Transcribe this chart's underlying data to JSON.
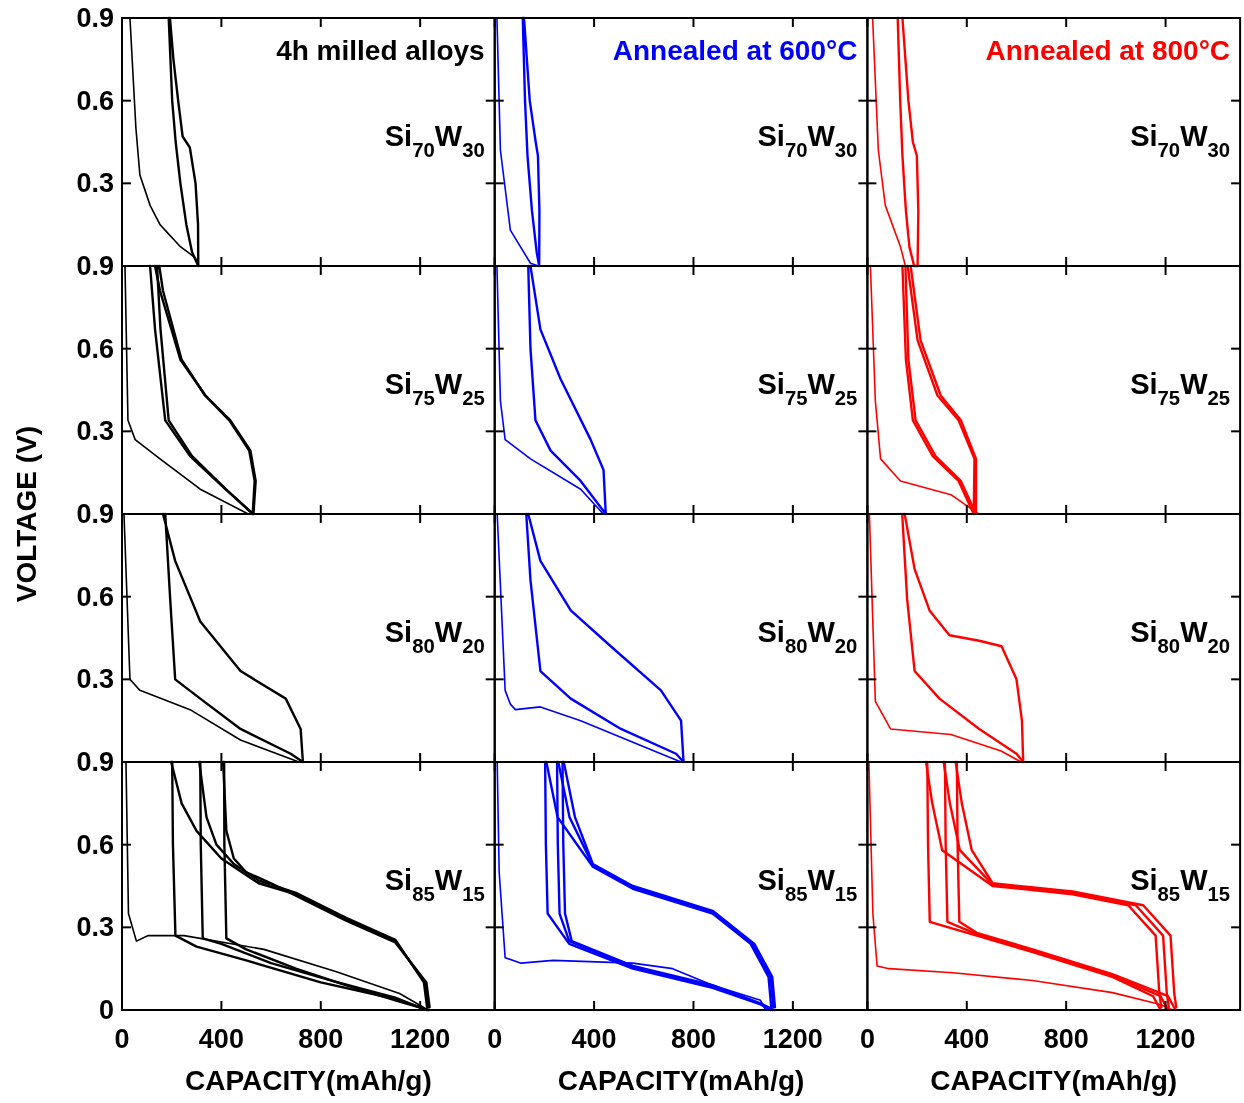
{
  "chart_data": [
    {
      "type": "line",
      "title": "4h milled alloys",
      "annotations": [
        "Si$_{70}$W$_{30}$"
      ],
      "ylabel": "VOLTAGE (V)",
      "xlim": [
        0,
        1500
      ],
      "xticks": [
        0,
        400,
        800,
        1200
      ],
      "ylim": [
        0,
        0.9
      ],
      "yticks": [
        0.3,
        0.6,
        0.9
      ],
      "tick_labels": "y",
      "series": [
        {
          "color": "#000000",
          "x": [
            32,
            56,
            72,
            113,
            153,
            235,
            295,
            307
          ],
          "values": [
            0.9,
            0.5,
            0.33,
            0.22,
            0.15,
            0.07,
            0.03,
            0
          ]
        },
        {
          "color": "#000000",
          "x": [
            188,
            202,
            216,
            235,
            259,
            282,
            307,
            306,
            296,
            273,
            244,
            226,
            207,
            193
          ],
          "values": [
            0.9,
            0.6,
            0.45,
            0.3,
            0.15,
            0.05,
            0,
            0.15,
            0.3,
            0.43,
            0.47,
            0.6,
            0.75,
            0.9
          ]
        }
      ]
    },
    {
      "type": "line",
      "title": "Annealed at 600°C",
      "annotations": [
        "Si$_{70}$W$_{30}$"
      ],
      "xlim": [
        0,
        1500
      ],
      "xticks": [
        0,
        400,
        800,
        1200
      ],
      "ylim": [
        0,
        0.9
      ],
      "yticks": [
        0.3,
        0.6,
        0.9
      ],
      "tick_labels": false,
      "series": [
        {
          "color": "#0000ff",
          "x": [
            9,
            23,
            63,
            144,
            176
          ],
          "values": [
            0.9,
            0.42,
            0.13,
            0.01,
            0
          ]
        },
        {
          "color": "#0000ff",
          "x": [
            113,
            122,
            132,
            150,
            169,
            179,
            180,
            174,
            165,
            141,
            118
          ],
          "values": [
            0.9,
            0.6,
            0.4,
            0.2,
            0.05,
            0,
            0.2,
            0.4,
            0.45,
            0.6,
            0.9
          ]
        }
      ]
    },
    {
      "type": "line",
      "title": "Annealed at 800°C",
      "annotations": [
        "Si$_{70}$W$_{30}$"
      ],
      "xlim": [
        0,
        1500
      ],
      "xticks": [
        0,
        400,
        800,
        1200
      ],
      "ylim": [
        0,
        0.9
      ],
      "yticks": [
        0.3,
        0.6,
        0.9
      ],
      "tick_labels": false,
      "series": [
        {
          "color": "#ff0000",
          "x": [
            21,
            44,
            72,
            133,
            153
          ],
          "values": [
            0.9,
            0.42,
            0.22,
            0.07,
            0
          ]
        },
        {
          "color": "#ff0000",
          "x": [
            122,
            132,
            141,
            155,
            169,
            188,
            202,
            205,
            199,
            183,
            165,
            141
          ],
          "values": [
            0.9,
            0.6,
            0.4,
            0.2,
            0.07,
            0,
            0,
            0.2,
            0.4,
            0.45,
            0.6,
            0.9
          ]
        }
      ]
    },
    {
      "type": "line",
      "annotations": [
        "Si$_{75}$W$_{25}$"
      ],
      "xlim": [
        0,
        1500
      ],
      "xticks": [
        0,
        400,
        800,
        1200
      ],
      "ylim": [
        0,
        0.9
      ],
      "yticks": [
        0.3,
        0.6,
        0.9
      ],
      "tick_labels": "y",
      "series": [
        {
          "color": "#000000",
          "x": [
            12,
            24,
            53,
            153,
            315,
            508
          ],
          "values": [
            0.9,
            0.34,
            0.27,
            0.2,
            0.09,
            0
          ]
        },
        {
          "color": "#000000",
          "x": [
            113,
            133,
            174,
            274,
            416,
            529,
            538,
            517,
            436,
            336,
            235,
            153,
            133
          ],
          "values": [
            0.9,
            0.67,
            0.34,
            0.21,
            0.09,
            0,
            0.12,
            0.23,
            0.34,
            0.43,
            0.56,
            0.81,
            0.9
          ]
        },
        {
          "color": "#000000",
          "x": [
            141,
            155,
            188,
            282,
            418,
            526,
            534,
            512,
            432,
            334,
            240,
            165,
            150
          ],
          "values": [
            0.9,
            0.67,
            0.34,
            0.21,
            0.09,
            0,
            0.12,
            0.23,
            0.34,
            0.43,
            0.56,
            0.81,
            0.9
          ]
        }
      ]
    },
    {
      "type": "line",
      "annotations": [
        "Si$_{75}$W$_{25}$"
      ],
      "xlim": [
        0,
        1500
      ],
      "xticks": [
        0,
        400,
        800,
        1200
      ],
      "ylim": [
        0,
        0.9
      ],
      "yticks": [
        0.3,
        0.6,
        0.9
      ],
      "tick_labels": false,
      "series": [
        {
          "color": "#0000ff",
          "x": [
            9,
            23,
            42,
            144,
            346,
            437
          ],
          "values": [
            0.9,
            0.41,
            0.27,
            0.2,
            0.09,
            0
          ]
        },
        {
          "color": "#0000ff",
          "x": [
            135,
            144,
            164,
            225,
            346,
            447,
            438,
            386,
            265,
            184,
            144
          ],
          "values": [
            0.9,
            0.6,
            0.34,
            0.23,
            0.12,
            0,
            0.16,
            0.27,
            0.49,
            0.67,
            0.9
          ]
        }
      ]
    },
    {
      "type": "line",
      "annotations": [
        "Si$_{75}$W$_{25}$"
      ],
      "xlim": [
        0,
        1500
      ],
      "xticks": [
        0,
        400,
        800,
        1200
      ],
      "ylim": [
        0,
        0.9
      ],
      "yticks": [
        0.3,
        0.6,
        0.9
      ],
      "tick_labels": false,
      "series": [
        {
          "color": "#ff0000",
          "x": [
            12,
            32,
            53,
            133,
            336,
            448
          ],
          "values": [
            0.9,
            0.41,
            0.2,
            0.12,
            0.07,
            0
          ]
        },
        {
          "color": "#ff0000",
          "x": [
            153,
            165,
            194,
            274,
            376,
            437,
            437,
            376,
            295,
            214,
            174
          ],
          "values": [
            0.9,
            0.56,
            0.34,
            0.21,
            0.12,
            0,
            0.2,
            0.34,
            0.43,
            0.63,
            0.9
          ]
        },
        {
          "color": "#ff0000",
          "x": [
            141,
            155,
            183,
            263,
            367,
            428,
            431,
            367,
            282,
            202,
            162
          ],
          "values": [
            0.9,
            0.56,
            0.34,
            0.21,
            0.12,
            0,
            0.2,
            0.34,
            0.43,
            0.63,
            0.9
          ]
        }
      ]
    },
    {
      "type": "line",
      "annotations": [
        "Si$_{80}$W$_{20}$"
      ],
      "xlim": [
        0,
        1500
      ],
      "xticks": [
        0,
        400,
        800,
        1200
      ],
      "ylim": [
        0,
        0.9
      ],
      "yticks": [
        0.3,
        0.6,
        0.9
      ],
      "tick_labels": "y",
      "series": [
        {
          "color": "#000000",
          "x": [
            8,
            32,
            72,
            274,
            477,
            712
          ],
          "values": [
            0.9,
            0.3,
            0.26,
            0.19,
            0.08,
            0
          ]
        },
        {
          "color": "#000000",
          "x": [
            174,
            194,
            214,
            315,
            477,
            679,
            728,
            719,
            659,
            477,
            315,
            214,
            165
          ],
          "values": [
            0.9,
            0.59,
            0.3,
            0.23,
            0.12,
            0.03,
            0,
            0.12,
            0.23,
            0.33,
            0.51,
            0.73,
            0.9
          ]
        }
      ]
    },
    {
      "type": "line",
      "annotations": [
        "Si$_{80}$W$_{20}$"
      ],
      "xlim": [
        0,
        1500
      ],
      "xticks": [
        0,
        400,
        800,
        1200
      ],
      "ylim": [
        0,
        0.9
      ],
      "yticks": [
        0.3,
        0.6,
        0.9
      ],
      "tick_labels": false,
      "series": [
        {
          "color": "#0000ff",
          "x": [
            10,
            42,
            63,
            83,
            184,
            346,
            588,
            750
          ],
          "values": [
            0.9,
            0.26,
            0.21,
            0.19,
            0.2,
            0.15,
            0.06,
            0
          ]
        },
        {
          "color": "#0000ff",
          "x": [
            127,
            144,
            184,
            306,
            508,
            730,
            760,
            750,
            669,
            467,
            306,
            184,
            135
          ],
          "values": [
            0.9,
            0.66,
            0.33,
            0.23,
            0.12,
            0.03,
            0,
            0.15,
            0.26,
            0.42,
            0.55,
            0.73,
            0.9
          ]
        }
      ]
    },
    {
      "type": "line",
      "annotations": [
        "Si$_{80}$W$_{20}$"
      ],
      "xlim": [
        0,
        1500
      ],
      "xticks": [
        0,
        400,
        800,
        1200
      ],
      "ylim": [
        0,
        0.9
      ],
      "yticks": [
        0.3,
        0.6,
        0.9
      ],
      "tick_labels": false,
      "series": [
        {
          "color": "#ff0000",
          "x": [
            8,
            32,
            93,
            336,
            538,
            619
          ],
          "values": [
            0.9,
            0.22,
            0.12,
            0.1,
            0.04,
            0
          ]
        },
        {
          "color": "#ff0000",
          "x": [
            140,
            160,
            190,
            290,
            450,
            600,
            627,
            627,
            622,
            600,
            540,
            450,
            330,
            250,
            190,
            150
          ],
          "values": [
            0.9,
            0.59,
            0.33,
            0.23,
            0.12,
            0.03,
            0,
            0,
            0.15,
            0.3,
            0.42,
            0.44,
            0.46,
            0.55,
            0.7,
            0.9
          ]
        }
      ]
    },
    {
      "type": "line",
      "annotations": [
        "Si$_{85}$W$_{15}$"
      ],
      "xlabel": "CAPACITY(mAh/g)",
      "xlim": [
        0,
        1500
      ],
      "xticks": [
        0,
        400,
        800,
        1200
      ],
      "ylim": [
        0,
        0.9
      ],
      "yticks": [
        0,
        0.3,
        0.6,
        0.9
      ],
      "series": [
        {
          "color": "#000000",
          "x": [
            16,
            26,
            58,
            106,
            250,
            571,
            860,
            1117,
            1213,
            1220
          ],
          "values": [
            0.9,
            0.35,
            0.25,
            0.27,
            0.27,
            0.22,
            0.14,
            0.06,
            0.01,
            0
          ]
        },
        {
          "color": "#000000",
          "x": [
            202,
            205,
            215,
            300,
            500,
            800,
            1100,
            1230
          ],
          "values": [
            0.9,
            0.6,
            0.27,
            0.23,
            0.18,
            0.1,
            0.04,
            0
          ]
        },
        {
          "color": "#000000",
          "x": [
            198,
            240,
            300,
            400,
            550,
            700,
            900,
            1100,
            1220,
            1232
          ],
          "values": [
            0.9,
            0.75,
            0.65,
            0.55,
            0.46,
            0.42,
            0.33,
            0.25,
            0.1,
            0.01
          ]
        },
        {
          "color": "#000000",
          "x": [
            315,
            317,
            325,
            400,
            600,
            850,
            1100,
            1225
          ],
          "values": [
            0.9,
            0.6,
            0.26,
            0.24,
            0.17,
            0.105,
            0.045,
            0
          ]
        },
        {
          "color": "#000000",
          "x": [
            311,
            340,
            380,
            450,
            550,
            700,
            900,
            1100,
            1215,
            1228
          ],
          "values": [
            0.9,
            0.7,
            0.6,
            0.53,
            0.47,
            0.425,
            0.335,
            0.255,
            0.1,
            0.01
          ]
        },
        {
          "color": "#000000",
          "x": [
            411,
            412,
            420,
            500,
            700,
            900,
            1100,
            1235
          ],
          "values": [
            0.9,
            0.6,
            0.26,
            0.22,
            0.15,
            0.09,
            0.035,
            0
          ]
        },
        {
          "color": "#000000",
          "x": [
            407,
            420,
            450,
            500,
            600,
            700,
            900,
            1100,
            1225,
            1238
          ],
          "values": [
            0.9,
            0.65,
            0.55,
            0.5,
            0.46,
            0.415,
            0.325,
            0.245,
            0.1,
            0.01
          ]
        }
      ]
    },
    {
      "type": "line",
      "annotations": [
        "Si$_{85}$W$_{15}$"
      ],
      "xlabel": "CAPACITY(mAh/g)",
      "xlim": [
        0,
        1500
      ],
      "xticks": [
        0,
        400,
        800,
        1200
      ],
      "ylim": [
        0,
        0.9
      ],
      "yticks": [
        0,
        0.3,
        0.6,
        0.9
      ],
      "tick_labels": "x",
      "series": [
        {
          "color": "#0000ff",
          "x": [
            10,
            18,
            42,
            106,
            235,
            556,
            716,
            877,
            1070,
            1090
          ],
          "values": [
            0.9,
            0.5,
            0.19,
            0.17,
            0.18,
            0.17,
            0.15,
            0.09,
            0.035,
            0
          ]
        },
        {
          "color": "#0000ff",
          "x": [
            203,
            206,
            213,
            300,
            556,
            877,
            1070,
            1110
          ],
          "values": [
            0.9,
            0.6,
            0.35,
            0.24,
            0.15,
            0.08,
            0.02,
            0
          ]
        },
        {
          "color": "#0000ff",
          "x": [
            208,
            253,
            395,
            556,
            877,
            1030,
            1102,
            1113
          ],
          "values": [
            0.9,
            0.7,
            0.52,
            0.44,
            0.35,
            0.24,
            0.12,
            0.01
          ]
        },
        {
          "color": "#0000ff",
          "x": [
            251,
            254,
            261,
            300,
            556,
            877,
            1075,
            1118
          ],
          "values": [
            0.9,
            0.6,
            0.35,
            0.25,
            0.155,
            0.085,
            0.02,
            0
          ]
        },
        {
          "color": "#0000ff",
          "x": [
            256,
            301,
            395,
            556,
            877,
            1038,
            1110,
            1121
          ],
          "values": [
            0.9,
            0.7,
            0.525,
            0.445,
            0.355,
            0.24,
            0.12,
            0.01
          ]
        },
        {
          "color": "#0000ff",
          "x": [
            273,
            276,
            283,
            310,
            556,
            877,
            1080,
            1125
          ],
          "values": [
            0.9,
            0.6,
            0.35,
            0.25,
            0.16,
            0.09,
            0.02,
            0
          ]
        },
        {
          "color": "#0000ff",
          "x": [
            278,
            323,
            395,
            556,
            877,
            1045,
            1117,
            1128
          ],
          "values": [
            0.9,
            0.7,
            0.53,
            0.45,
            0.36,
            0.24,
            0.12,
            0.01
          ]
        }
      ]
    },
    {
      "type": "line",
      "annotations": [
        "Si$_{85}$W$_{15}$"
      ],
      "xlabel": "CAPACITY(mAh/g)",
      "xlim": [
        0,
        1500
      ],
      "xticks": [
        0,
        400,
        800,
        1200
      ],
      "ylim": [
        0,
        0.9
      ],
      "yticks": [
        0,
        0.3,
        0.6,
        0.9
      ],
      "tick_labels": "x",
      "series": [
        {
          "color": "#ff0000",
          "x": [
            6,
            22,
            39,
            87,
            344,
            665,
            986,
            1179,
            1228
          ],
          "values": [
            0.9,
            0.35,
            0.16,
            0.15,
            0.135,
            0.107,
            0.063,
            0.02,
            0
          ]
        },
        {
          "color": "#ff0000",
          "x": [
            241,
            244,
            251,
            440,
            665,
            986,
            1150,
            1180
          ],
          "values": [
            0.9,
            0.6,
            0.32,
            0.27,
            0.21,
            0.12,
            0.05,
            0
          ]
        },
        {
          "color": "#ff0000",
          "x": [
            236,
            261,
            301,
            504,
            826,
            1050,
            1160,
            1175,
            1183
          ],
          "values": [
            0.9,
            0.75,
            0.58,
            0.45,
            0.42,
            0.38,
            0.27,
            0.06,
            0.01
          ]
        },
        {
          "color": "#ff0000",
          "x": [
            312,
            315,
            322,
            440,
            665,
            986,
            1180,
            1210
          ],
          "values": [
            0.9,
            0.6,
            0.32,
            0.275,
            0.215,
            0.125,
            0.05,
            0
          ]
        },
        {
          "color": "#ff0000",
          "x": [
            307,
            332,
            372,
            504,
            826,
            1080,
            1190,
            1205,
            1213
          ],
          "values": [
            0.9,
            0.75,
            0.58,
            0.455,
            0.425,
            0.38,
            0.27,
            0.06,
            0.01
          ]
        },
        {
          "color": "#ff0000",
          "x": [
            360,
            363,
            370,
            440,
            665,
            986,
            1210,
            1240
          ],
          "values": [
            0.9,
            0.6,
            0.32,
            0.28,
            0.22,
            0.13,
            0.05,
            0
          ]
        },
        {
          "color": "#ff0000",
          "x": [
            355,
            380,
            420,
            504,
            826,
            1110,
            1220,
            1235,
            1243
          ],
          "values": [
            0.9,
            0.75,
            0.58,
            0.46,
            0.43,
            0.38,
            0.27,
            0.06,
            0.01
          ]
        }
      ]
    }
  ]
}
